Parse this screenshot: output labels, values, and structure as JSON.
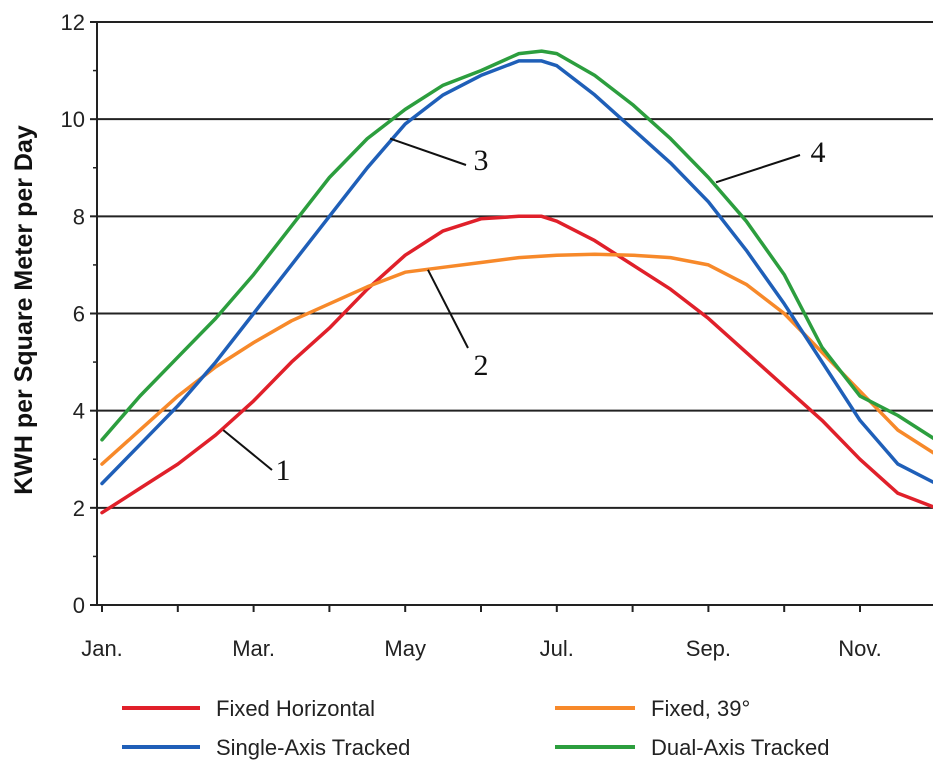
{
  "chart_data": {
    "type": "line",
    "ylabel": "KWH per Square Meter per Day",
    "xlabel": "",
    "x_tick_labels": [
      "Jan.",
      "Mar.",
      "May",
      "Jul.",
      "Sep.",
      "Nov."
    ],
    "y_ticks": [
      0,
      2,
      4,
      6,
      8,
      10,
      12
    ],
    "ylim": [
      0,
      12
    ],
    "xlim": [
      1,
      12.5
    ],
    "grid": "horizontal",
    "legend_position": "bottom",
    "series": [
      {
        "name": "Fixed Horizontal",
        "callout": "1",
        "color": "#e0202a",
        "x": [
          1.0,
          1.5,
          2.0,
          2.5,
          3.0,
          3.5,
          4.0,
          4.5,
          5.0,
          5.5,
          6.0,
          6.5,
          6.8,
          7.0,
          7.5,
          8.0,
          8.5,
          9.0,
          9.5,
          10.0,
          10.5,
          11.0,
          11.5,
          12.0,
          12.5
        ],
        "y": [
          1.9,
          2.4,
          2.9,
          3.5,
          4.2,
          5.0,
          5.7,
          6.5,
          7.2,
          7.7,
          7.95,
          8.0,
          8.0,
          7.9,
          7.5,
          7.0,
          6.5,
          5.9,
          5.2,
          4.5,
          3.8,
          3.0,
          2.3,
          2.0,
          1.8
        ]
      },
      {
        "name": "Fixed, 39°",
        "callout": "2",
        "color": "#f7892a",
        "x": [
          1.0,
          1.5,
          2.0,
          2.5,
          3.0,
          3.5,
          4.0,
          4.5,
          5.0,
          5.5,
          6.0,
          6.5,
          7.0,
          7.5,
          8.0,
          8.5,
          9.0,
          9.5,
          10.0,
          10.5,
          11.0,
          11.5,
          12.0,
          12.5
        ],
        "y": [
          2.9,
          3.6,
          4.3,
          4.9,
          5.4,
          5.85,
          6.2,
          6.55,
          6.85,
          6.95,
          7.05,
          7.15,
          7.2,
          7.22,
          7.2,
          7.15,
          7.0,
          6.6,
          6.0,
          5.2,
          4.4,
          3.6,
          3.1,
          2.75
        ]
      },
      {
        "name": "Single-Axis Tracked",
        "callout": "3",
        "color": "#1f5fb8",
        "x": [
          1.0,
          1.5,
          2.0,
          2.5,
          3.0,
          3.5,
          4.0,
          4.5,
          5.0,
          5.5,
          6.0,
          6.5,
          6.8,
          7.0,
          7.5,
          8.0,
          8.5,
          9.0,
          9.5,
          10.0,
          10.5,
          11.0,
          11.5,
          12.0,
          12.5
        ],
        "y": [
          2.5,
          3.3,
          4.1,
          5.0,
          6.0,
          7.0,
          8.0,
          9.0,
          9.9,
          10.5,
          10.9,
          11.2,
          11.2,
          11.1,
          10.5,
          9.8,
          9.1,
          8.3,
          7.3,
          6.2,
          5.0,
          3.8,
          2.9,
          2.5,
          2.2
        ]
      },
      {
        "name": "Dual-Axis Tracked",
        "callout": "4",
        "color": "#2c9e3e",
        "x": [
          1.0,
          1.5,
          2.0,
          2.5,
          3.0,
          3.5,
          4.0,
          4.5,
          5.0,
          5.5,
          6.0,
          6.5,
          6.8,
          7.0,
          7.5,
          8.0,
          8.5,
          9.0,
          9.5,
          10.0,
          10.5,
          11.0,
          11.5,
          12.0,
          12.5
        ],
        "y": [
          3.4,
          4.3,
          5.1,
          5.9,
          6.8,
          7.8,
          8.8,
          9.6,
          10.2,
          10.7,
          11.0,
          11.35,
          11.4,
          11.35,
          10.9,
          10.3,
          9.6,
          8.8,
          7.9,
          6.8,
          5.3,
          4.3,
          3.9,
          3.4,
          3.0
        ]
      }
    ]
  }
}
